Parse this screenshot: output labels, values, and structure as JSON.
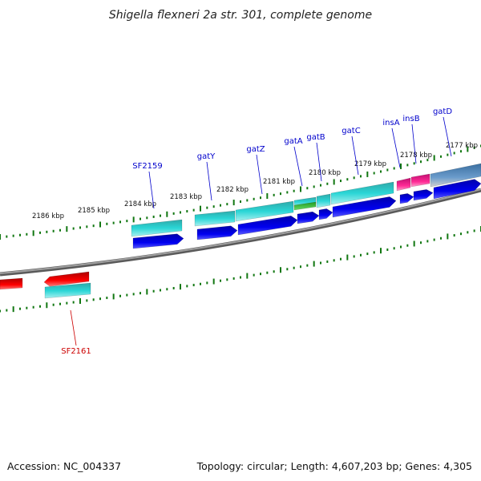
{
  "title": "Shigella flexneri 2a str. 301, complete genome",
  "footer": {
    "accession": "Accession: NC_004337",
    "summary": "Topology: circular; Length: 4,607,203 bp; Genes: 4,305"
  },
  "ticks": [
    "2177 kbp",
    "2178 kbp",
    "2179 kbp",
    "2180 kbp",
    "2181 kbp",
    "2182 kbp",
    "2183 kbp",
    "2184 kbp",
    "2185 kbp",
    "2186 kbp"
  ],
  "genes": [
    "SF2159",
    "gatY",
    "gatZ",
    "gatA",
    "gatB",
    "gatC",
    "insA",
    "insB",
    "gatD",
    "SF2161"
  ],
  "colors": {
    "forward_label": "#0000cc",
    "reverse_label": "#cc0000",
    "cds_forward": "#0000e6",
    "cds_reverse": "#ee0000",
    "gene_cyan": "#22c8c8",
    "gene_green": "#33bb33",
    "gene_pink": "#ee2288",
    "gene_steel": "#4a7fb0",
    "tick": "#117711",
    "backbone": "#808080"
  }
}
